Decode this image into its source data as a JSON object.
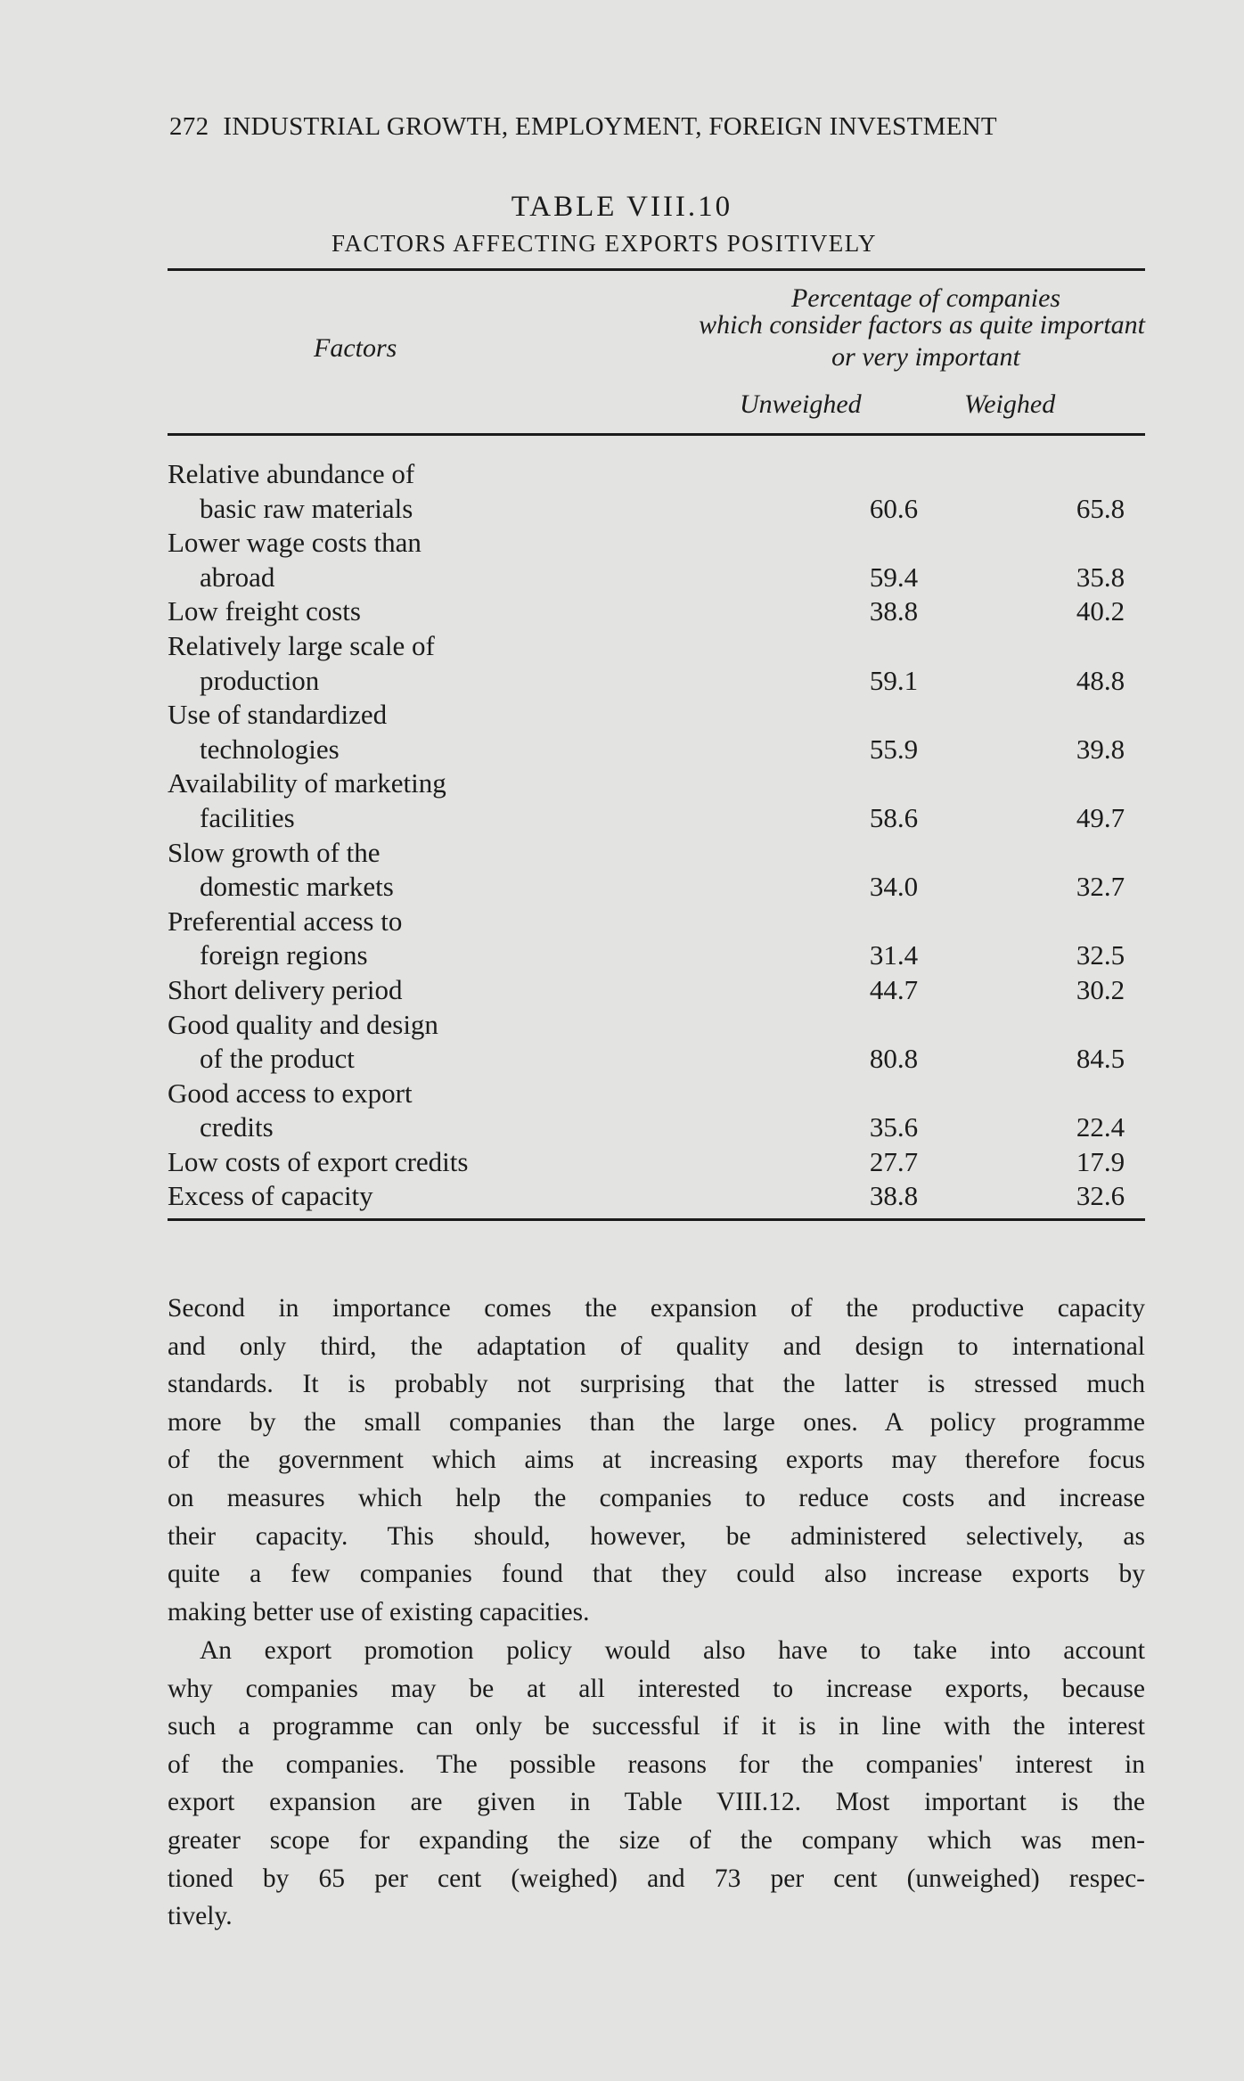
{
  "header": {
    "page_number": "272",
    "running_title": "INDUSTRIAL GROWTH, EMPLOYMENT, FOREIGN INVESTMENT"
  },
  "table": {
    "title": "TABLE VIII.10",
    "subtitle": "FACTORS AFFECTING EXPORTS POSITIVELY",
    "col_factors": "Factors",
    "col_group": [
      "Percentage of companies",
      "which consider factors as quite important",
      "or very important"
    ],
    "col_unweighed": "Unweighed",
    "col_weighed": "Weighed",
    "rows": [
      {
        "label": [
          "Relative abundance of",
          "basic raw materials"
        ],
        "unweighed": "60.6",
        "weighed": "65.8"
      },
      {
        "label": [
          "Lower wage costs than",
          "abroad"
        ],
        "unweighed": "59.4",
        "weighed": "35.8"
      },
      {
        "label": [
          "Low freight costs"
        ],
        "unweighed": "38.8",
        "weighed": "40.2"
      },
      {
        "label": [
          "Relatively large scale of",
          "production"
        ],
        "unweighed": "59.1",
        "weighed": "48.8"
      },
      {
        "label": [
          "Use of standardized",
          "technologies"
        ],
        "unweighed": "55.9",
        "weighed": "39.8"
      },
      {
        "label": [
          "Availability of marketing",
          "facilities"
        ],
        "unweighed": "58.6",
        "weighed": "49.7"
      },
      {
        "label": [
          "Slow growth of the",
          "domestic markets"
        ],
        "unweighed": "34.0",
        "weighed": "32.7"
      },
      {
        "label": [
          "Preferential access to",
          "foreign regions"
        ],
        "unweighed": "31.4",
        "weighed": "32.5"
      },
      {
        "label": [
          "Short delivery period"
        ],
        "unweighed": "44.7",
        "weighed": "30.2"
      },
      {
        "label": [
          "Good quality and design",
          "of the product"
        ],
        "unweighed": "80.8",
        "weighed": "84.5"
      },
      {
        "label": [
          "Good access to export",
          "credits"
        ],
        "unweighed": "35.6",
        "weighed": "22.4"
      },
      {
        "label": [
          "Low costs of export credits"
        ],
        "unweighed": "27.7",
        "weighed": "17.9"
      },
      {
        "label": [
          "Excess of capacity"
        ],
        "unweighed": "38.8",
        "weighed": "32.6"
      }
    ]
  },
  "body": {
    "paragraph1": [
      "Second in importance comes the expansion of the productive capacity",
      "and only third, the adaptation of quality and design to international",
      "standards. It is probably not surprising that the latter is stressed much",
      "more by the small companies than the large ones. A policy programme",
      "of the government which aims at increasing exports may therefore focus",
      "on measures which help the companies to reduce costs and increase",
      "their capacity. This should, however, be administered selectively, as",
      "quite a few companies found that they could also increase exports by",
      "making better use of existing capacities."
    ],
    "paragraph2": [
      "An export promotion policy would also have to take into account",
      "why companies may be at all interested to increase exports, because",
      "such a programme can only be successful if it is in line with the interest",
      "of the companies. The possible reasons for the companies' interest in",
      "export expansion are given in Table VIII.12. Most important is the",
      "greater scope for expanding the size of the company which was men-",
      "tioned by 65 per cent (weighed) and 73 per cent (unweighed) respec-",
      "tively."
    ]
  }
}
